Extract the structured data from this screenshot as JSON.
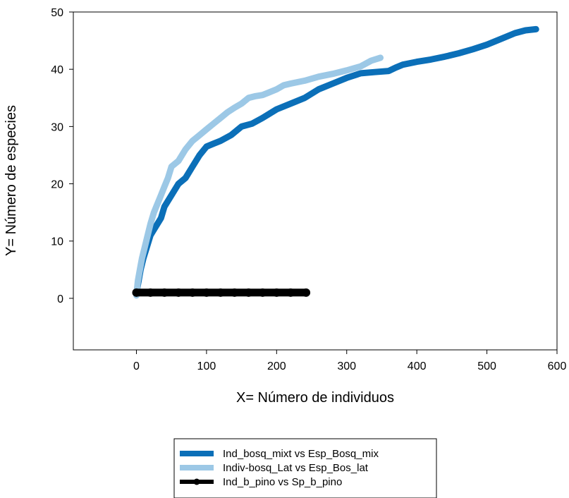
{
  "chart_data": {
    "type": "line",
    "title": "",
    "xlabel": "X= Número de individuos",
    "ylabel": "Y= Número de especies",
    "xlim": [
      -90,
      600
    ],
    "ylim": [
      -9,
      50
    ],
    "x_ticks": [
      0,
      100,
      200,
      300,
      400,
      500,
      600
    ],
    "y_ticks": [
      0,
      10,
      20,
      30,
      40,
      50
    ],
    "grid": false,
    "legend_position": "bottom-center",
    "series": [
      {
        "name": "Ind_bosq_mixt vs Esp_Bosq_mix",
        "color": "#0b6fb8",
        "style": "thick-line",
        "x": [
          0,
          3,
          6,
          10,
          15,
          20,
          25,
          30,
          35,
          40,
          50,
          60,
          70,
          80,
          90,
          100,
          110,
          120,
          135,
          150,
          165,
          180,
          200,
          220,
          240,
          260,
          280,
          300,
          320,
          340,
          360,
          370,
          380,
          400,
          420,
          440,
          460,
          480,
          500,
          520,
          540,
          555,
          570
        ],
        "y": [
          1,
          3,
          5,
          7,
          9,
          11,
          12,
          13,
          14,
          16,
          18,
          20,
          21,
          23,
          25,
          26.5,
          27,
          27.5,
          28.5,
          30,
          30.5,
          31.5,
          33,
          34,
          35,
          36.5,
          37.5,
          38.5,
          39.3,
          39.5,
          39.7,
          40.3,
          40.8,
          41.3,
          41.7,
          42.2,
          42.8,
          43.5,
          44.3,
          45.3,
          46.3,
          46.8,
          47
        ]
      },
      {
        "name": "Indiv-bosq_Lat vs Esp_Bos_lat",
        "color": "#9cc8e6",
        "style": "thick-line",
        "x": [
          0,
          2,
          5,
          8,
          12,
          16,
          20,
          25,
          30,
          35,
          40,
          45,
          50,
          60,
          70,
          80,
          90,
          100,
          110,
          120,
          130,
          140,
          150,
          160,
          170,
          180,
          190,
          200,
          210,
          220,
          240,
          260,
          280,
          300,
          320,
          335,
          348
        ],
        "y": [
          0.5,
          3,
          5,
          7,
          9,
          11,
          13,
          15,
          16.5,
          18,
          19.5,
          21,
          23,
          24,
          26,
          27.5,
          28.5,
          29.5,
          30.5,
          31.5,
          32.5,
          33.3,
          34,
          35,
          35.3,
          35.5,
          36,
          36.5,
          37.2,
          37.5,
          38,
          38.7,
          39.2,
          39.8,
          40.5,
          41.5,
          42
        ]
      },
      {
        "name": "Ind_b_pino vs Sp_b_pino",
        "color": "#000000",
        "style": "thick-line-with-markers",
        "x": [
          0,
          20,
          40,
          60,
          80,
          100,
          120,
          140,
          160,
          180,
          200,
          220,
          242
        ],
        "y": [
          1,
          1,
          1,
          1,
          1,
          1,
          1,
          1,
          1,
          1,
          1,
          1,
          1
        ]
      }
    ]
  }
}
